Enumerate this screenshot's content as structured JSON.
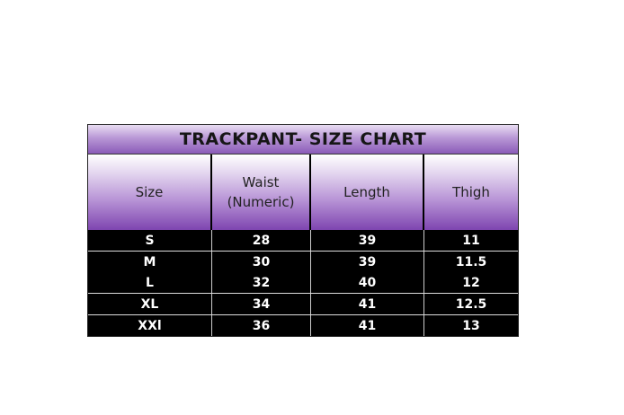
{
  "title": "TRACKPANT- SIZE CHART",
  "headers": [
    "Size",
    "Waist\n(Numeric)",
    "Length",
    "Thigh"
  ],
  "header_lines": {
    "waist_1": "Waist",
    "waist_2": "(Numeric)"
  },
  "rows": [
    [
      "S",
      "28",
      "39",
      "11"
    ],
    [
      "M",
      "30",
      "39",
      "11.5"
    ],
    [
      "L",
      "32",
      "40",
      "12"
    ],
    [
      "XL",
      "34",
      "41",
      "12.5"
    ],
    [
      "XXl",
      "36",
      "41",
      "13"
    ]
  ],
  "colors": {
    "header_purple": "#7e45b0",
    "body_background": "#000000",
    "body_text": "#ffffff"
  }
}
